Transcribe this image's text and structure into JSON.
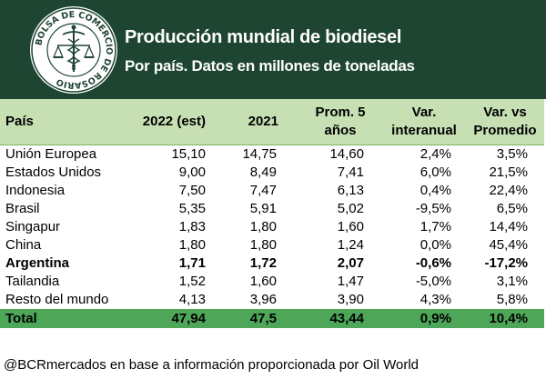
{
  "header": {
    "title": "Producción mundial de biodiesel",
    "subtitle": "Por país. Datos en millones de toneladas",
    "logo_text": "BOLSA DE COMERCIO DE ROSARIO"
  },
  "table": {
    "columns": [
      "País",
      "2022 (est)",
      "2021",
      "Prom. 5",
      "años",
      "Var.",
      "interanual",
      "Var. vs",
      "Promedio"
    ],
    "rows": [
      [
        "Unión Europea",
        "15,10",
        "14,75",
        "14,60",
        "2,4%",
        "3,5%"
      ],
      [
        "Estados Unidos",
        "9,00",
        "8,49",
        "7,41",
        "6,0%",
        "21,5%"
      ],
      [
        "Indonesia",
        "7,50",
        "7,47",
        "6,13",
        "0,4%",
        "22,4%"
      ],
      [
        "Brasil",
        "5,35",
        "5,91",
        "5,02",
        "-9,5%",
        "6,5%"
      ],
      [
        "Singapur",
        "1,83",
        "1,80",
        "1,60",
        "1,7%",
        "14,4%"
      ],
      [
        "China",
        "1,80",
        "1,80",
        "1,24",
        "0,0%",
        "45,4%"
      ],
      [
        "Argentina",
        "1,71",
        "1,72",
        "2,07",
        "-0,6%",
        "-17,2%"
      ],
      [
        "Tailandia",
        "1,52",
        "1,60",
        "1,47",
        "-5,0%",
        "3,1%"
      ],
      [
        "Resto del mundo",
        "4,13",
        "3,96",
        "3,90",
        "4,3%",
        "5,8%"
      ]
    ],
    "total": [
      "Total",
      "47,94",
      "47,5",
      "43,44",
      "0,9%",
      "10,4%"
    ]
  },
  "footer": "@BCRmercados en base a información proporcionada por Oil World",
  "colors": {
    "header_bg": "#1e4432",
    "table_header_bg": "#c6e0b4",
    "total_bg": "#4ea659"
  }
}
